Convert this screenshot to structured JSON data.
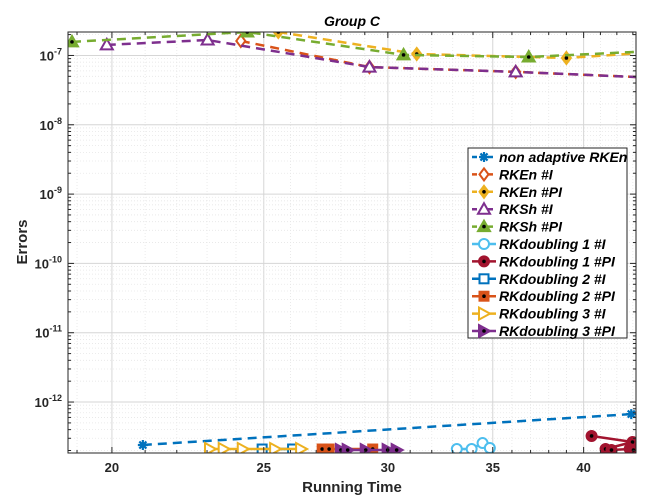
{
  "chart_data": {
    "type": "line",
    "title": "Group C",
    "xlabel": "Running Time",
    "ylabel": "Errors",
    "xscale": "log",
    "yscale": "log",
    "xlim": [
      18.75,
      43.2
    ],
    "ylim": [
      1.84e-13,
      2.18e-07
    ],
    "grid": true,
    "legend_position": "right-middle",
    "x_ticks": [
      {
        "v": 20,
        "label": "20"
      },
      {
        "v": 25,
        "label": "25"
      },
      {
        "v": 30,
        "label": "30"
      },
      {
        "v": 35,
        "label": "35"
      },
      {
        "v": 40,
        "label": "40"
      }
    ],
    "y_ticks": [
      {
        "v": -12,
        "base": "10",
        "exp": "-12"
      },
      {
        "v": -11,
        "base": "10",
        "exp": "-11"
      },
      {
        "v": -10,
        "base": "10",
        "exp": "-10"
      },
      {
        "v": -9,
        "base": "10",
        "exp": "-9"
      },
      {
        "v": -8,
        "base": "10",
        "exp": "-8"
      },
      {
        "v": -7,
        "base": "10",
        "exp": "-7"
      }
    ],
    "series": [
      {
        "name": "non adaptive RKEn",
        "color": "#0072BD",
        "marker": "star",
        "dash": true,
        "x": [
          20.93,
          42.9
        ],
        "y": [
          2.4e-13,
          6.7e-13
        ]
      },
      {
        "name": "RKEn #I",
        "color": "#D95319",
        "marker": "diamond",
        "dash": true,
        "x": [
          24.17,
          29.2,
          36.2,
          44
        ],
        "y": [
          1.62e-07,
          6.8e-08,
          5.8e-08,
          4.8e-08
        ]
      },
      {
        "name": "RKEn #PI",
        "color": "#EDB120",
        "marker": "diamond-filled",
        "dash": true,
        "x": [
          25.54,
          31.3,
          39.0,
          44
        ],
        "y": [
          2.18e-07,
          1.05e-07,
          9.2e-08,
          1.1e-07
        ]
      },
      {
        "name": "RKSh #I",
        "color": "#7E2F8E",
        "marker": "triangle",
        "dash": true,
        "x": [
          19.85,
          23.02,
          29.2,
          36.2,
          44
        ],
        "y": [
          1.42e-07,
          1.67e-07,
          6.8e-08,
          5.8e-08,
          4.8e-08
        ]
      },
      {
        "name": "RKSh #PI",
        "color": "#77AC30",
        "marker": "triangle-filled",
        "dash": true,
        "x": [
          18.86,
          24.4,
          30.7,
          36.9,
          44
        ],
        "y": [
          1.57e-07,
          2.18e-07,
          1.02e-07,
          9.5e-08,
          1.15e-07
        ]
      },
      {
        "name": "RKdoubling 1 #I",
        "color": "#4DBEEE",
        "marker": "circle",
        "dash": false,
        "x": [
          33.2,
          33.93,
          34.48,
          34.85
        ],
        "y": [
          2.1e-13,
          2.1e-13,
          2.56e-13,
          2.17e-13
        ]
      },
      {
        "name": "RKdoubling 1 #PI",
        "color": "#A2142F",
        "marker": "circle-filled",
        "dash": false,
        "x": [
          40.47,
          42.98,
          41.31,
          41.67,
          42.8,
          43.04
        ],
        "y": [
          3.24e-13,
          2.65e-13,
          2.1e-13,
          2.03e-13,
          2.1e-13,
          2.03e-13
        ]
      },
      {
        "name": "RKdoubling 2 #I",
        "color": "#0072BD",
        "marker": "square",
        "dash": false,
        "x": [
          24.94,
          26.08
        ],
        "y": [
          2.1e-13,
          2.1e-13
        ]
      },
      {
        "name": "RKdoubling 2 #PI",
        "color": "#D95319",
        "marker": "square-filled",
        "dash": false,
        "x": [
          27.24,
          27.52,
          29.34
        ],
        "y": [
          2.1e-13,
          2.1e-13,
          2.1e-13
        ]
      },
      {
        "name": "RKdoubling 3 #I",
        "color": "#EDB120",
        "marker": "rtriangle",
        "dash": false,
        "x": [
          23.1,
          23.57,
          24.24,
          25.42,
          26.41
        ],
        "y": [
          2.1e-13,
          2.1e-13,
          2.1e-13,
          2.1e-13,
          2.1e-13
        ]
      },
      {
        "name": "RKdoubling 3 #PI",
        "color": "#7E2F8E",
        "marker": "rtriangle-filled",
        "dash": false,
        "x": [
          28.0,
          28.28,
          29.04,
          29.99,
          30.39
        ],
        "y": [
          2.03e-13,
          2.03e-13,
          2.03e-13,
          2.03e-13,
          2.03e-13
        ]
      }
    ]
  }
}
